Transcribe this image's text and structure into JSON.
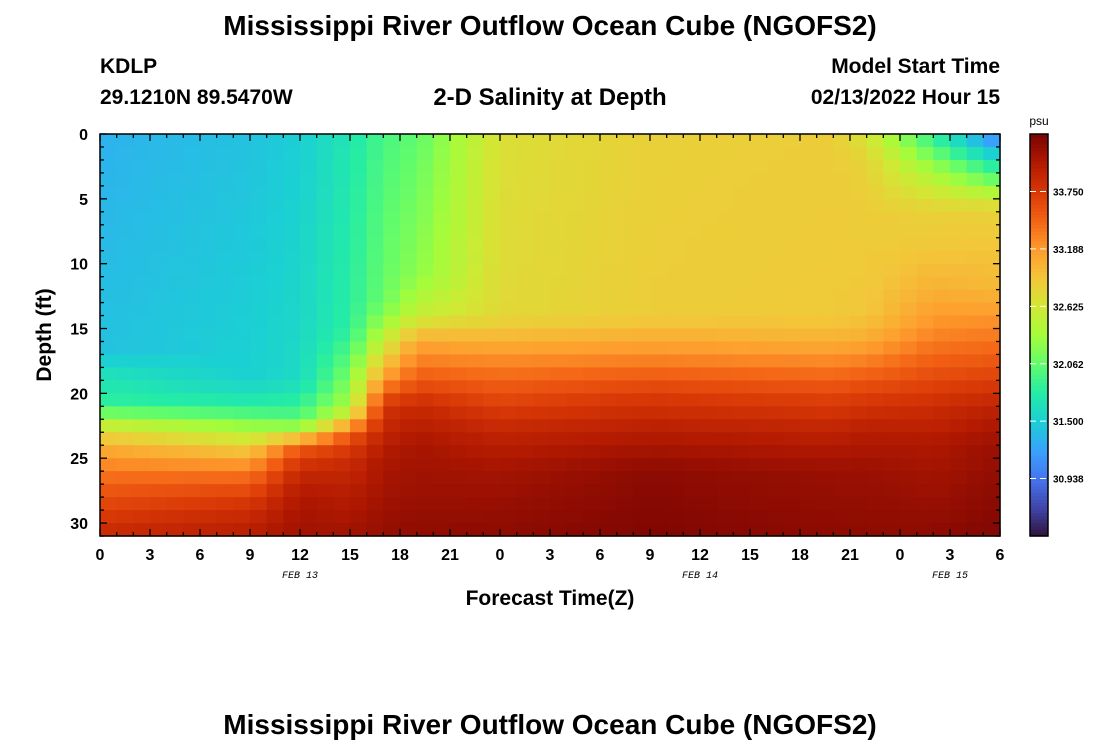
{
  "header": {
    "title": "Mississippi River Outflow Ocean Cube (NGOFS2)",
    "station": "KDLP",
    "coordinates": "29.1210N  89.5470W",
    "subtitle": "2-D Salinity at Depth",
    "model_start_label": "Model Start Time",
    "model_start_value": "02/13/2022 Hour 15"
  },
  "footer": {
    "title": "Mississippi River Outflow Ocean Cube (NGOFS2)"
  },
  "chart_data": {
    "type": "heatmap",
    "xlabel": "Forecast Time(Z)",
    "ylabel": "Depth (ft)",
    "x_tick_labels": [
      "0",
      "3",
      "6",
      "9",
      "12",
      "15",
      "18",
      "21",
      "0",
      "3",
      "6",
      "9",
      "12",
      "15",
      "18",
      "21",
      "0",
      "3",
      "6"
    ],
    "x_hours": [
      0,
      54
    ],
    "x_date_labels": [
      {
        "label": "FEB 13",
        "hour": 12
      },
      {
        "label": "FEB 14",
        "hour": 36
      },
      {
        "label": "FEB 15",
        "hour": 51
      }
    ],
    "y_tick_labels": [
      "0",
      "5",
      "10",
      "15",
      "20",
      "25",
      "30"
    ],
    "y_ticks": [
      0,
      5,
      10,
      15,
      20,
      25,
      30
    ],
    "ylim": [
      0,
      31
    ],
    "colorbar": {
      "unit": "psu",
      "tick_labels": [
        "33.750",
        "33.188",
        "32.625",
        "32.062",
        "31.500",
        "30.938"
      ],
      "ticks": [
        33.75,
        33.188,
        32.625,
        32.062,
        31.5,
        30.938
      ],
      "range": [
        30.375,
        34.313
      ],
      "colors": [
        "#30123b",
        "#4145ab",
        "#4675ed",
        "#39a2fc",
        "#1bcfd4",
        "#24eca6",
        "#61fc6c",
        "#a4fc3b",
        "#d1e834",
        "#f3c63a",
        "#fe9b2d",
        "#f36315",
        "#d93806",
        "#b11901",
        "#7a0403"
      ]
    },
    "salinity_profiles": [
      {
        "hour": 0,
        "depths": [
          0,
          17,
          18,
          21,
          22,
          24,
          27,
          31
        ],
        "values": [
          31.32,
          31.42,
          31.62,
          31.85,
          32.4,
          33.05,
          33.5,
          33.9
        ]
      },
      {
        "hour": 9,
        "depths": [
          0,
          19,
          21,
          23,
          25,
          27,
          29,
          31
        ],
        "values": [
          31.42,
          31.52,
          31.8,
          32.45,
          33.1,
          33.55,
          33.85,
          34.0
        ]
      },
      {
        "hour": 12,
        "depths": [
          0,
          19,
          22,
          23,
          24,
          26,
          28,
          31
        ],
        "values": [
          31.5,
          31.6,
          32.0,
          32.5,
          33.5,
          33.9,
          34.05,
          34.12
        ]
      },
      {
        "hour": 15,
        "depths": [
          0,
          15,
          18,
          21,
          22,
          23,
          25,
          28,
          31
        ],
        "values": [
          31.72,
          31.82,
          32.1,
          32.4,
          32.8,
          33.5,
          33.85,
          34.0,
          34.12
        ]
      },
      {
        "hour": 17,
        "depths": [
          0,
          13,
          16,
          19,
          21,
          25,
          31
        ],
        "values": [
          31.95,
          32.1,
          32.55,
          33.2,
          33.8,
          34.05,
          34.18
        ]
      },
      {
        "hour": 19,
        "depths": [
          0,
          11,
          14,
          16,
          19,
          21,
          24,
          31
        ],
        "values": [
          32.05,
          32.25,
          32.55,
          33.1,
          33.55,
          33.88,
          34.08,
          34.2
        ]
      },
      {
        "hour": 24,
        "depths": [
          0,
          14,
          16,
          18,
          20,
          23,
          26,
          31
        ],
        "values": [
          32.7,
          32.75,
          33.05,
          33.35,
          33.6,
          33.92,
          34.1,
          34.22
        ]
      },
      {
        "hour": 33,
        "depths": [
          0,
          14,
          16,
          18,
          20,
          23,
          26,
          31
        ],
        "values": [
          32.82,
          32.85,
          33.1,
          33.4,
          33.72,
          34.0,
          34.22,
          34.28
        ]
      },
      {
        "hour": 44,
        "depths": [
          0,
          14,
          16,
          18,
          20,
          23,
          26,
          31
        ],
        "values": [
          32.85,
          32.88,
          33.05,
          33.35,
          33.65,
          33.95,
          34.15,
          34.22
        ]
      },
      {
        "hour": 46,
        "depths": [
          0,
          2,
          6,
          14,
          16,
          18,
          20,
          23,
          26,
          31
        ],
        "values": [
          32.65,
          32.8,
          32.85,
          32.9,
          33.1,
          33.4,
          33.7,
          34.0,
          34.15,
          34.22
        ]
      },
      {
        "hour": 50,
        "depths": [
          0,
          2,
          4,
          6,
          9,
          12,
          15,
          18,
          21,
          24,
          31
        ],
        "values": [
          31.8,
          32.2,
          32.55,
          32.82,
          32.9,
          33.05,
          33.25,
          33.55,
          33.85,
          34.05,
          34.22
        ]
      },
      {
        "hour": 54,
        "depths": [
          0,
          2,
          4,
          5,
          6,
          9,
          12,
          15,
          18,
          21,
          24,
          31
        ],
        "values": [
          30.95,
          31.6,
          32.2,
          32.6,
          32.82,
          32.92,
          33.0,
          33.3,
          33.6,
          33.95,
          34.15,
          34.28
        ]
      }
    ]
  }
}
